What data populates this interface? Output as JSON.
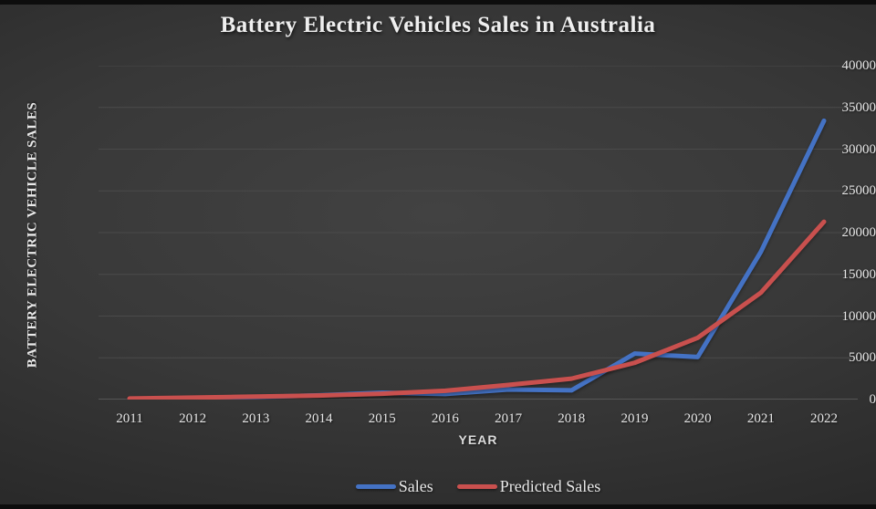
{
  "title": "Battery Electric Vehicles Sales in Australia",
  "chart_data": {
    "type": "line",
    "title": "Battery Electric Vehicles Sales in Australia",
    "x": [
      2011,
      2012,
      2013,
      2014,
      2015,
      2016,
      2017,
      2018,
      2019,
      2020,
      2021,
      2022
    ],
    "series": [
      {
        "name": "Sales",
        "color": "#4472C4",
        "values": [
          50,
          180,
          290,
          500,
          820,
          670,
          1200,
          1100,
          5500,
          5100,
          17700,
          33400
        ]
      },
      {
        "name": "Predicted Sales",
        "color": "#C9504E",
        "values": [
          120,
          230,
          350,
          480,
          700,
          1050,
          1750,
          2500,
          4400,
          7400,
          12800,
          21300
        ]
      }
    ],
    "xlabel": "YEAR",
    "ylabel": "BATTERY ELECTRIC VEHICLE SALES",
    "ylim": [
      0,
      40000
    ],
    "ytick_step": 5000,
    "yticks": [
      0,
      5000,
      10000,
      15000,
      20000,
      25000,
      30000,
      35000,
      40000
    ],
    "grid": true,
    "legend_position": "bottom",
    "gridline_color": "#4a4a4a",
    "axis_line_color": "#565656",
    "text_color": "#e6e6e6",
    "background": "dark-gray-gradient"
  }
}
